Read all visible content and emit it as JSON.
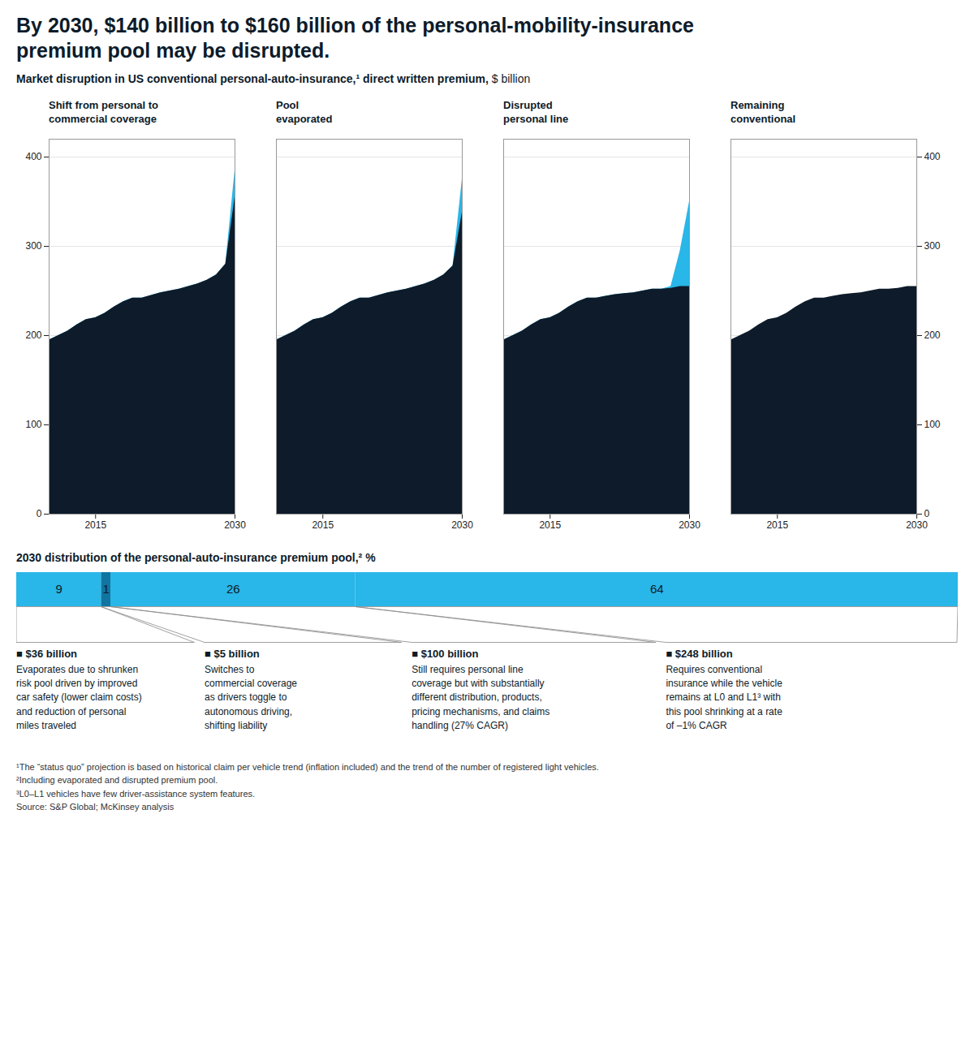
{
  "title": "By 2030, $140 billion to $160 billion of the personal-mobility-insurance\npremium pool may be disrupted.",
  "subtitle": "Market disruption in US conventional personal-auto-insurance,¹ direct written premium, $ billion",
  "chart_data": [
    {
      "type": "area",
      "title": "Shift from personal to\ncommercial coverage",
      "x": [
        2010,
        2011,
        2012,
        2013,
        2014,
        2015,
        2016,
        2017,
        2018,
        2019,
        2020,
        2021,
        2022,
        2023,
        2024,
        2025,
        2026,
        2027,
        2028,
        2029,
        2030
      ],
      "series": [
        {
          "color": "#0D1B2A",
          "values": [
            195,
            200,
            205,
            212,
            218,
            220,
            225,
            232,
            238,
            242,
            242,
            245,
            248,
            250,
            252,
            255,
            258,
            262,
            268,
            280,
            355
          ]
        },
        {
          "color": "#29B6E8",
          "values": [
            195,
            200,
            205,
            212,
            218,
            220,
            225,
            232,
            238,
            242,
            242,
            245,
            248,
            250,
            252,
            255,
            258,
            262,
            268,
            280,
            385
          ]
        }
      ],
      "xlim": [
        2010,
        2030
      ],
      "xticks": [
        2015,
        2030
      ],
      "ylim": [
        0,
        420
      ],
      "yticks": [
        0,
        100,
        200,
        300,
        400
      ],
      "grid": true
    },
    {
      "type": "area",
      "title": "Pool\nevaporated",
      "x": [
        2010,
        2011,
        2012,
        2013,
        2014,
        2015,
        2016,
        2017,
        2018,
        2019,
        2020,
        2021,
        2022,
        2023,
        2024,
        2025,
        2026,
        2027,
        2028,
        2029,
        2030
      ],
      "series": [
        {
          "color": "#0D1B2A",
          "values": [
            195,
            200,
            205,
            212,
            218,
            220,
            225,
            232,
            238,
            242,
            242,
            245,
            248,
            250,
            252,
            255,
            258,
            262,
            268,
            278,
            338
          ]
        },
        {
          "color": "#29B6E8",
          "values": [
            195,
            200,
            205,
            212,
            218,
            220,
            225,
            232,
            238,
            242,
            242,
            245,
            248,
            250,
            252,
            255,
            258,
            262,
            268,
            278,
            375
          ]
        }
      ],
      "xlim": [
        2010,
        2030
      ],
      "xticks": [
        2015,
        2030
      ],
      "ylim": [
        0,
        420
      ],
      "yticks": [
        0,
        100,
        200,
        300,
        400
      ],
      "grid": true,
      "tick_labels": "x"
    },
    {
      "type": "area",
      "title": "Disrupted\npersonal line",
      "x": [
        2010,
        2011,
        2012,
        2013,
        2014,
        2015,
        2016,
        2017,
        2018,
        2019,
        2020,
        2021,
        2022,
        2023,
        2024,
        2025,
        2026,
        2027,
        2028,
        2029,
        2030
      ],
      "series": [
        {
          "color": "#0D1B2A",
          "values": [
            195,
            200,
            205,
            212,
            218,
            220,
            225,
            232,
            238,
            242,
            242,
            244,
            246,
            247,
            248,
            250,
            252,
            252,
            253,
            255,
            255
          ]
        },
        {
          "color": "#29B6E8",
          "values": [
            195,
            200,
            205,
            212,
            218,
            220,
            225,
            232,
            238,
            242,
            242,
            244,
            246,
            247,
            248,
            250,
            252,
            252,
            255,
            295,
            350
          ]
        }
      ],
      "xlim": [
        2010,
        2030
      ],
      "xticks": [
        2015,
        2030
      ],
      "ylim": [
        0,
        420
      ],
      "yticks": [
        0,
        100,
        200,
        300,
        400
      ],
      "grid": true,
      "tick_labels": "x"
    },
    {
      "type": "area",
      "title": "Remaining\nconventional",
      "x": [
        2010,
        2011,
        2012,
        2013,
        2014,
        2015,
        2016,
        2017,
        2018,
        2019,
        2020,
        2021,
        2022,
        2023,
        2024,
        2025,
        2026,
        2027,
        2028,
        2029,
        2030
      ],
      "series": [
        {
          "color": "#0D1B2A",
          "values": [
            195,
            200,
            205,
            212,
            218,
            220,
            225,
            232,
            238,
            242,
            242,
            244,
            246,
            247,
            248,
            250,
            252,
            252,
            253,
            255,
            255
          ]
        }
      ],
      "xlim": [
        2010,
        2030
      ],
      "xticks": [
        2015,
        2030
      ],
      "ylim": [
        0,
        420
      ],
      "yticks": [
        0,
        100,
        200,
        300,
        400
      ],
      "grid": true
    },
    {
      "type": "bar",
      "title": "2030 distribution of the personal-auto-insurance premium pool,² %",
      "orientation": "horizontal",
      "stacked": true,
      "categories": [
        null
      ],
      "series": [
        {
          "color": "#29B6E8",
          "values": [
            9
          ]
        },
        {
          "color": "#1075A0",
          "values": [
            1
          ]
        },
        {
          "color": "#29B6E8",
          "values": [
            26
          ]
        },
        {
          "color": "#29B6E8",
          "values": [
            64
          ]
        }
      ],
      "xlim": [
        0,
        100
      ],
      "data_labels": true,
      "tick_labels": false,
      "annotations": [
        {
          "title": "■ $36 billion",
          "text": "Evaporates due to shrunken\nrisk pool driven by improved\ncar safety (lower claim costs)\nand reduction of personal\nmiles traveled"
        },
        {
          "title": "■ $5 billion",
          "text": "Switches to\ncommercial coverage\nas drivers toggle to\nautonomous driving,\nshifting liability"
        },
        {
          "title": "■ $100 billion",
          "text": "Still requires personal line\ncoverage but with substantially\ndifferent distribution, products,\npricing mechanisms, and claims\nhandling (27% CAGR)"
        },
        {
          "title": "■ $248 billion",
          "text": "Requires conventional\ninsurance while the vehicle\nremains at L0 and L1³ with\nthis pool shrinking at a rate\nof –1% CAGR"
        }
      ]
    }
  ],
  "footnotes": [
    "¹The “status quo” projection is based on historical claim per vehicle trend (inflation included) and the trend of the number of registered light vehicles.",
    "²Including evaporated and disrupted premium pool.",
    "³L0–L1 vehicles have few driver-assistance system features.",
    "Source: S&P Global; McKinsey analysis"
  ]
}
